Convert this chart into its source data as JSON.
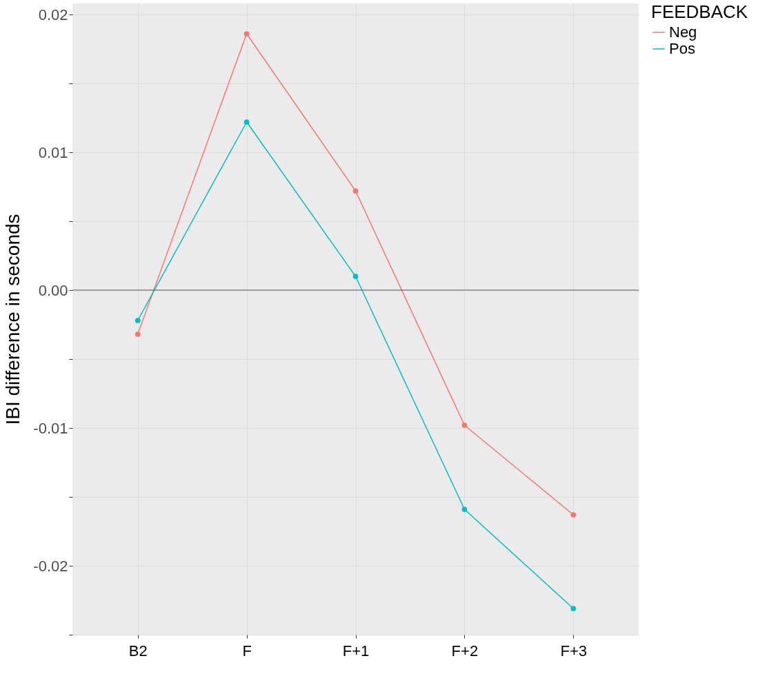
{
  "chart_data": {
    "type": "line",
    "ylabel": "IBI difference in seconds",
    "legend_title": "FEEDBACK",
    "categories": [
      "B2",
      "F",
      "F+1",
      "F+2",
      "F+3"
    ],
    "series": [
      {
        "name": "Neg",
        "color": "#f8766d",
        "values": [
          -0.0032,
          0.0186,
          0.0072,
          -0.0098,
          -0.0163
        ]
      },
      {
        "name": "Pos",
        "color": "#00bfc4",
        "values": [
          -0.0022,
          0.0122,
          0.001,
          -0.0159,
          -0.0231
        ]
      }
    ],
    "ylim": [
      -0.025,
      0.0208
    ],
    "yticks": [
      {
        "value": -0.025,
        "label": null
      },
      -0.02,
      {
        "value": -0.015,
        "label": null
      },
      -0.01,
      {
        "value": -0.005,
        "label": null
      },
      {
        "value": 0,
        "label": "0.00"
      },
      {
        "value": 0.005,
        "label": null
      },
      0.01,
      {
        "value": 0.015,
        "label": null
      },
      0.02
    ],
    "ref_lines": [
      {
        "axis": "y",
        "value": 0,
        "color": "#555555"
      }
    ],
    "grid": true,
    "legend": "right",
    "marker": "circle",
    "line_style": "solid"
  }
}
